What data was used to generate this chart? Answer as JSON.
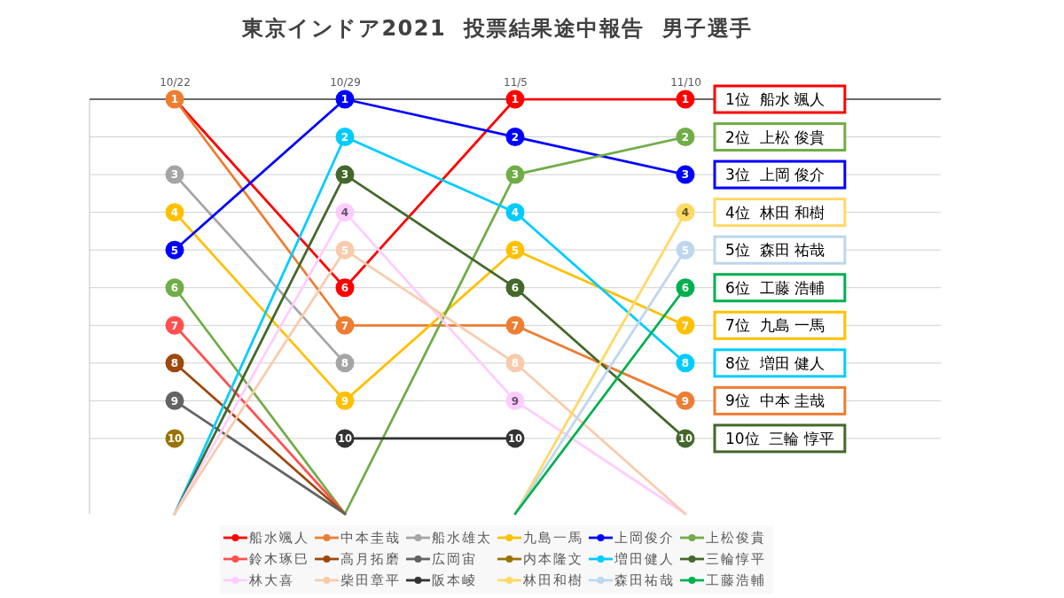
{
  "chart_data": {
    "type": "line",
    "title": "東京インドア2021  投票結果途中報告  男子選手",
    "categories": [
      "10/22",
      "10/29",
      "11/5",
      "11/10"
    ],
    "ylim": [
      12,
      1
    ],
    "yticks": [
      {
        "value": 1,
        "label": "1位  船水 颯人"
      },
      {
        "value": 2,
        "label": "2位  上松 俊貴"
      },
      {
        "value": 3,
        "label": "3位  上岡 俊介"
      },
      {
        "value": 4,
        "label": "4位  林田 和樹"
      },
      {
        "value": 5,
        "label": "5位  森田 祐哉"
      },
      {
        "value": 6,
        "label": "6位  工藤 浩輔"
      },
      {
        "value": 7,
        "label": "7位  九島 一馬"
      },
      {
        "value": 8,
        "label": "8位  増田 健人"
      },
      {
        "value": 9,
        "label": "9位  中本 圭哉"
      },
      {
        "value": 10,
        "label": "10位  三輪 惇平"
      }
    ],
    "grid": "y",
    "legend": "bottom",
    "marker": "circle",
    "series": [
      {
        "name": "船水颯人",
        "color": "#ff0000",
        "values": [
          1,
          6,
          1,
          1
        ],
        "value_labels": [
          null,
          "6",
          "1",
          "1"
        ]
      },
      {
        "name": "中本圭哉",
        "color": "#ed7d31",
        "values": [
          1,
          7,
          7,
          9
        ],
        "value_labels": [
          "1",
          "7",
          "7",
          "9"
        ]
      },
      {
        "name": "船水雄太",
        "color": "#a5a5a5",
        "values": [
          3,
          8,
          null,
          null
        ],
        "value_labels": [
          "3",
          "8",
          null,
          null
        ]
      },
      {
        "name": "九島一馬",
        "color": "#ffc000",
        "values": [
          4,
          9,
          5,
          7
        ],
        "value_labels": [
          "4",
          "9",
          "5",
          "7"
        ]
      },
      {
        "name": "上岡俊介",
        "color": "#0000ff",
        "values": [
          5,
          1,
          2,
          3
        ],
        "value_labels": [
          "5",
          "1",
          "2",
          "3"
        ]
      },
      {
        "name": "上松俊貴",
        "color": "#70ad47",
        "values": [
          6,
          12,
          3,
          2
        ],
        "value_labels": [
          "6",
          null,
          "3",
          "2"
        ]
      },
      {
        "name": "鈴木琢巳",
        "color": "#ff5050",
        "values": [
          7,
          12,
          null,
          null
        ],
        "value_labels": [
          "7",
          null,
          null,
          null
        ]
      },
      {
        "name": "高月拓磨",
        "color": "#9e480e",
        "values": [
          8,
          12,
          null,
          null
        ],
        "value_labels": [
          "8",
          null,
          null,
          null
        ]
      },
      {
        "name": "広岡宙",
        "color": "#636363",
        "values": [
          9,
          12,
          null,
          null
        ],
        "value_labels": [
          "9",
          null,
          null,
          null
        ]
      },
      {
        "name": "内本隆文",
        "color": "#997300",
        "values": [
          10,
          null,
          null,
          null
        ],
        "value_labels": [
          "10",
          null,
          null,
          null
        ]
      },
      {
        "name": "増田健人",
        "color": "#00ccff",
        "values": [
          12,
          2,
          4,
          8
        ],
        "value_labels": [
          null,
          "2",
          "4",
          "8"
        ]
      },
      {
        "name": "三輪惇平",
        "color": "#43682b",
        "values": [
          12,
          3,
          6,
          10
        ],
        "value_labels": [
          null,
          "3",
          "6",
          "10"
        ]
      },
      {
        "name": "林大喜",
        "color": "#ffccff",
        "values": [
          12,
          4,
          9,
          12
        ],
        "value_labels": [
          null,
          "4",
          "9",
          null
        ]
      },
      {
        "name": "柴田章平",
        "color": "#f8cbad",
        "values": [
          12,
          5,
          8,
          12
        ],
        "value_labels": [
          null,
          "5",
          "8",
          null
        ]
      },
      {
        "name": "阪本崚",
        "color": "#333333",
        "values": [
          null,
          10,
          10,
          null
        ],
        "value_labels": [
          null,
          "10",
          "10",
          null
        ]
      },
      {
        "name": "林田和樹",
        "color": "#ffd966",
        "values": [
          null,
          null,
          12,
          4
        ],
        "value_labels": [
          null,
          null,
          null,
          "4"
        ]
      },
      {
        "name": "森田祐哉",
        "color": "#bdd7ee",
        "values": [
          null,
          null,
          12,
          5
        ],
        "value_labels": [
          null,
          null,
          null,
          "5"
        ]
      },
      {
        "name": "工藤浩輔",
        "color": "#00b050",
        "values": [
          null,
          null,
          12,
          6
        ],
        "value_labels": [
          null,
          null,
          null,
          "6"
        ]
      }
    ]
  }
}
